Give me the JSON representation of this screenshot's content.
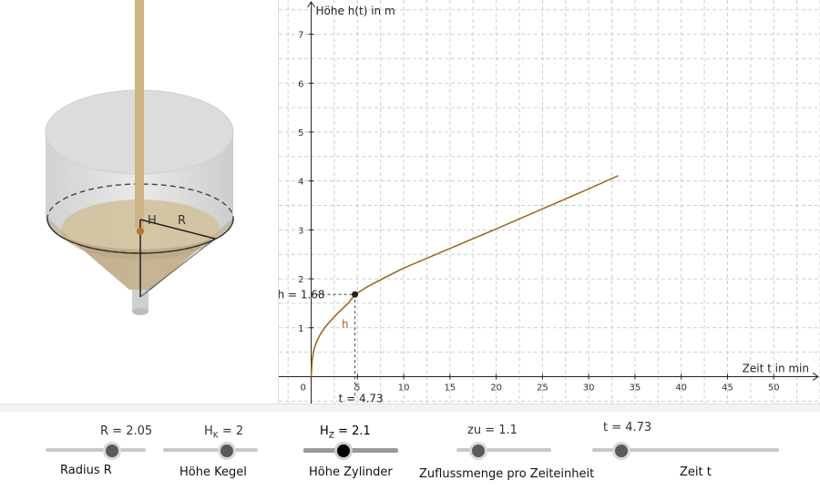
{
  "chart_data": {
    "type": "line",
    "xlabel": "Zeit t in min",
    "ylabel": "Höhe h(t) in m",
    "xlim": [
      -3.5,
      55
    ],
    "ylim": [
      -0.55,
      7.7
    ],
    "x_ticks": [
      0,
      5,
      10,
      15,
      20,
      25,
      30,
      35,
      40,
      45,
      50
    ],
    "y_ticks": [
      1,
      2,
      3,
      4,
      5,
      6,
      7
    ],
    "grid": true,
    "series": [
      {
        "name": "h",
        "color": "#9a6b1e",
        "x": [
          0,
          0.1,
          0.3,
          0.6,
          1,
          1.5,
          2,
          3,
          4,
          4.73,
          6,
          8,
          10,
          15,
          20,
          25,
          30,
          33.2
        ],
        "y": [
          0,
          0.33,
          0.56,
          0.72,
          0.87,
          1.01,
          1.12,
          1.32,
          1.5,
          1.68,
          1.83,
          2.03,
          2.22,
          2.62,
          3.02,
          3.43,
          3.84,
          4.11
        ]
      }
    ],
    "marked_point": {
      "t": 4.73,
      "h": 1.68,
      "t_label": "t = 4.73",
      "h_label": "h = 1.68"
    }
  },
  "view3d": {
    "label_H": "H",
    "label_R": "R",
    "fill_color": "#c8b48c",
    "rod_color": "#cdb482",
    "point_color": "#b07a2a"
  },
  "sliders": [
    {
      "value_text": "R = 2.05",
      "caption": "Radius R",
      "fraction": 0.68,
      "active": false
    },
    {
      "value_text": "H",
      "value_sub": "K",
      "value_rest": " = 2",
      "caption": "Höhe Kegel",
      "fraction": 0.67,
      "active": false
    },
    {
      "value_text": "H",
      "value_sub": "Z",
      "value_rest": " = 2.1",
      "caption": "Höhe Zylinder",
      "fraction": 0.42,
      "active": true
    },
    {
      "value_text": "zu = 1.1",
      "caption": "Zuflussmenge pro Zeiteinheit",
      "fraction": 0.23,
      "active": false
    },
    {
      "value_text": "t = 4.73",
      "caption": "Zeit t",
      "fraction": 0.15,
      "active": false
    }
  ]
}
